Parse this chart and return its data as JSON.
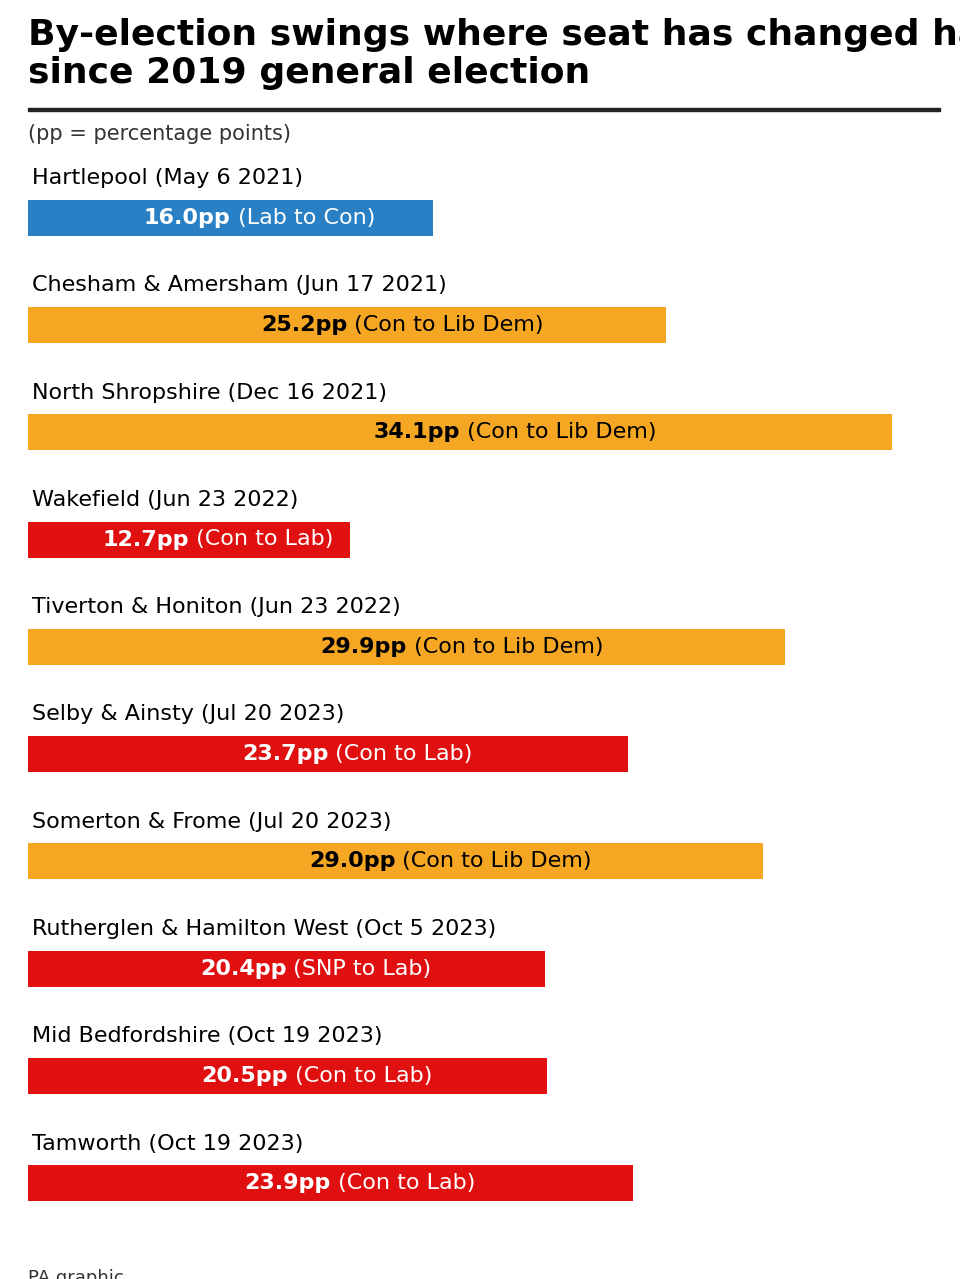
{
  "title_line1": "By-election swings where seat has changed hands",
  "title_line2": "since 2019 general election",
  "subtitle": "(pp = percentage points)",
  "footer": "PA graphic",
  "background_color": "#ffffff",
  "title_color": "#000000",
  "title_fontsize": 26,
  "subtitle_fontsize": 15,
  "label_fontsize": 16,
  "bar_label_fontsize": 16,
  "entries": [
    {
      "constituency": "Hartlepool (May 6 2021)",
      "value": 16.0,
      "bold_part": "16.0pp",
      "normal_part": " (Lab to Con)",
      "color": "#2980c4",
      "text_color": "#ffffff"
    },
    {
      "constituency": "Chesham & Amersham (Jun 17 2021)",
      "value": 25.2,
      "bold_part": "25.2pp",
      "normal_part": " (Con to Lib Dem)",
      "color": "#f5a623",
      "text_color": "#000000"
    },
    {
      "constituency": "North Shropshire (Dec 16 2021)",
      "value": 34.1,
      "bold_part": "34.1pp",
      "normal_part": " (Con to Lib Dem)",
      "color": "#f5a623",
      "text_color": "#000000"
    },
    {
      "constituency": "Wakefield (Jun 23 2022)",
      "value": 12.7,
      "bold_part": "12.7pp",
      "normal_part": " (Con to Lab)",
      "color": "#e01010",
      "text_color": "#ffffff"
    },
    {
      "constituency": "Tiverton & Honiton (Jun 23 2022)",
      "value": 29.9,
      "bold_part": "29.9pp",
      "normal_part": " (Con to Lib Dem)",
      "color": "#f5a623",
      "text_color": "#000000"
    },
    {
      "constituency": "Selby & Ainsty (Jul 20 2023)",
      "value": 23.7,
      "bold_part": "23.7pp",
      "normal_part": " (Con to Lab)",
      "color": "#e01010",
      "text_color": "#ffffff"
    },
    {
      "constituency": "Somerton & Frome (Jul 20 2023)",
      "value": 29.0,
      "bold_part": "29.0pp",
      "normal_part": " (Con to Lib Dem)",
      "color": "#f5a623",
      "text_color": "#000000"
    },
    {
      "constituency": "Rutherglen & Hamilton West (Oct 5 2023)",
      "value": 20.4,
      "bold_part": "20.4pp",
      "normal_part": " (SNP to Lab)",
      "color": "#e01010",
      "text_color": "#ffffff"
    },
    {
      "constituency": "Mid Bedfordshire (Oct 19 2023)",
      "value": 20.5,
      "bold_part": "20.5pp",
      "normal_part": " (Con to Lab)",
      "color": "#e01010",
      "text_color": "#ffffff"
    },
    {
      "constituency": "Tamworth (Oct 19 2023)",
      "value": 23.9,
      "bold_part": "23.9pp",
      "normal_part": " (Con to Lab)",
      "color": "#e01010",
      "text_color": "#ffffff"
    }
  ],
  "max_value": 36.0
}
